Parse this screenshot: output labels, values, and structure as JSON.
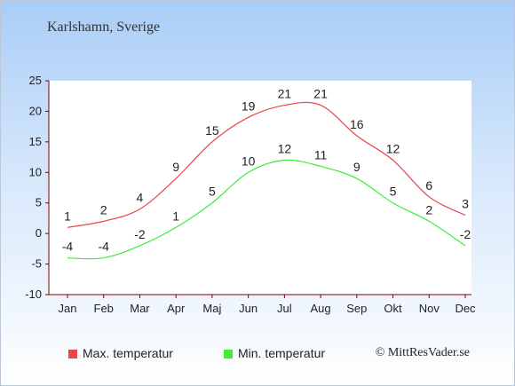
{
  "title": "Karlshamn, Sverige",
  "copyright": "© MittResVader.se",
  "chart_data": {
    "type": "line",
    "categories": [
      "Jan",
      "Feb",
      "Mar",
      "Apr",
      "Maj",
      "Jun",
      "Jul",
      "Aug",
      "Sep",
      "Okt",
      "Nov",
      "Dec"
    ],
    "ylim": [
      -10,
      25
    ],
    "yticks": [
      25,
      20,
      15,
      10,
      5,
      0,
      -5,
      -10
    ],
    "grid": false,
    "legend_position": "bottom",
    "series": [
      {
        "name": "Max. temperatur",
        "color": "#e8474a",
        "values": [
          1,
          2,
          4,
          9,
          15,
          19,
          21,
          21,
          16,
          12,
          6,
          3
        ]
      },
      {
        "name": "Min. temperatur",
        "color": "#3ded3a",
        "values": [
          -4,
          -4,
          -2,
          1,
          5,
          10,
          12,
          11,
          9,
          5,
          2,
          -2
        ]
      }
    ]
  }
}
